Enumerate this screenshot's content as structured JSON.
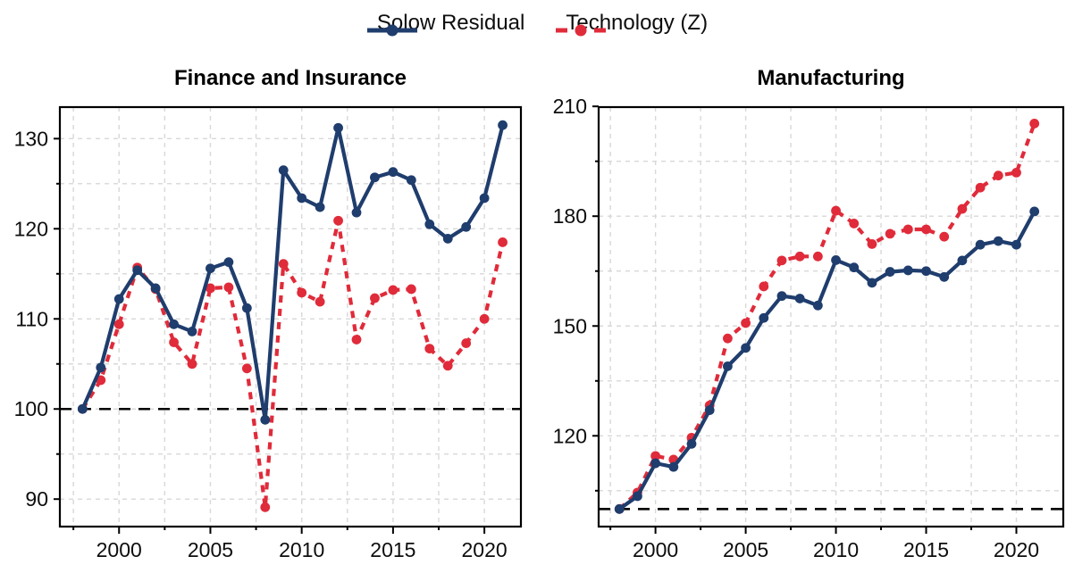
{
  "legend": {
    "items": [
      {
        "label": "Solow Residual",
        "color": "#1f3d6d",
        "style": "solid"
      },
      {
        "label": "Technology (Z)",
        "color": "#e02b3a",
        "style": "dashed"
      }
    ]
  },
  "colors": {
    "solow_navy": "#1f3d6d",
    "technology_red": "#e02b3a",
    "gridline_gray": "#d8d8d8",
    "baseline_black": "#000000",
    "background": "#ffffff"
  },
  "chart_data": [
    {
      "type": "line",
      "title": "Finance and Insurance",
      "x": [
        1998,
        1999,
        2000,
        2001,
        2002,
        2003,
        2004,
        2005,
        2006,
        2007,
        2008,
        2009,
        2010,
        2011,
        2012,
        2013,
        2014,
        2015,
        2016,
        2017,
        2018,
        2019,
        2020,
        2021
      ],
      "series": [
        {
          "name": "Technology (Z)",
          "color": "#e02b3a",
          "dashed": true,
          "values": [
            100,
            103.2,
            109.4,
            115.7,
            113.3,
            107.4,
            105.0,
            113.4,
            113.5,
            104.5,
            89.1,
            116.1,
            112.9,
            111.9,
            120.9,
            107.7,
            112.3,
            113.2,
            113.3,
            106.7,
            104.8,
            107.3,
            110.0,
            118.5
          ]
        },
        {
          "name": "Solow Residual",
          "color": "#1f3d6d",
          "dashed": false,
          "values": [
            100,
            104.6,
            112.2,
            115.4,
            113.4,
            109.4,
            108.6,
            115.6,
            116.3,
            111.2,
            98.8,
            126.5,
            123.4,
            122.4,
            131.2,
            121.8,
            125.7,
            126.3,
            125.4,
            120.5,
            118.9,
            120.2,
            123.4,
            131.5
          ]
        }
      ],
      "baseline": 100,
      "x_ticks": [
        2000,
        2005,
        2010,
        2015,
        2020
      ],
      "x_minor_ticks": [
        1997.5,
        2002.5,
        2007.5,
        2012.5,
        2017.5
      ],
      "y_ticks": [
        90,
        100,
        110,
        120,
        130
      ],
      "y_minor_ticks": [
        95,
        105,
        115,
        125
      ],
      "xlim": [
        1996.76,
        2022.0
      ],
      "ylim": [
        86.95,
        133.5
      ],
      "grid": true,
      "legend_position": "top"
    },
    {
      "type": "line",
      "title": "Manufacturing",
      "x": [
        1998,
        1999,
        2000,
        2001,
        2002,
        2003,
        2004,
        2005,
        2006,
        2007,
        2008,
        2009,
        2010,
        2011,
        2012,
        2013,
        2014,
        2015,
        2016,
        2017,
        2018,
        2019,
        2020,
        2021
      ],
      "series": [
        {
          "name": "Technology (Z)",
          "color": "#e02b3a",
          "dashed": true,
          "values": [
            100,
            104.5,
            114.5,
            113.5,
            119.5,
            128.3,
            146.6,
            150.8,
            160.8,
            167.9,
            169.0,
            169.0,
            181.5,
            178.0,
            172.4,
            175.2,
            176.4,
            176.4,
            174.4,
            182.0,
            187.8,
            191.1,
            191.9,
            205.3
          ]
        },
        {
          "name": "Solow Residual",
          "color": "#1f3d6d",
          "dashed": false,
          "values": [
            100,
            103.5,
            112.5,
            111.5,
            117.8,
            127.0,
            139.0,
            144.0,
            152.2,
            158.2,
            157.5,
            155.6,
            168.0,
            166.0,
            161.8,
            164.8,
            165.2,
            165.0,
            163.4,
            167.9,
            172.2,
            173.2,
            172.2,
            181.3
          ]
        }
      ],
      "baseline": 100,
      "x_ticks": [
        2000,
        2005,
        2010,
        2015,
        2020
      ],
      "x_minor_ticks": [
        1997.5,
        2002.5,
        2007.5,
        2012.5,
        2017.5
      ],
      "y_ticks": [
        120,
        150,
        180,
        210
      ],
      "y_minor_ticks": [
        105,
        135,
        165,
        195
      ],
      "xlim": [
        1996.85,
        2022.6
      ],
      "ylim": [
        95.2,
        209.8
      ],
      "grid": true,
      "legend_position": "top"
    }
  ]
}
